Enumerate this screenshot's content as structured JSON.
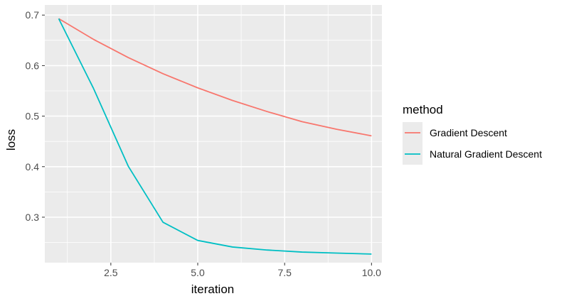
{
  "chart_data": {
    "type": "line",
    "title": "",
    "xlabel": "iteration",
    "ylabel": "loss",
    "x": [
      1,
      2,
      3,
      4,
      5,
      6,
      7,
      8,
      9,
      10
    ],
    "xlim": [
      0.6,
      10.3
    ],
    "ylim": [
      0.21,
      0.72
    ],
    "x_ticks": [
      2.5,
      5.0,
      7.5,
      10.0
    ],
    "x_tick_labels": [
      "2.5",
      "5.0",
      "7.5",
      "10.0"
    ],
    "y_ticks": [
      0.3,
      0.4,
      0.5,
      0.6,
      0.7
    ],
    "y_tick_labels": [
      "0.3",
      "0.4",
      "0.5",
      "0.6",
      "0.7"
    ],
    "grid": true,
    "legend": {
      "title": "method",
      "position": "right"
    },
    "series": [
      {
        "name": "Gradient Descent",
        "color": "#F8766D",
        "values": [
          0.693,
          0.652,
          0.616,
          0.584,
          0.556,
          0.531,
          0.509,
          0.489,
          0.474,
          0.461
        ]
      },
      {
        "name": "Natural Gradient Descent",
        "color": "#00BFC4",
        "values": [
          0.693,
          0.555,
          0.401,
          0.29,
          0.254,
          0.241,
          0.235,
          0.231,
          0.229,
          0.227
        ]
      }
    ],
    "panel_color": "#EBEBEB",
    "grid_color": "#FFFFFF"
  }
}
